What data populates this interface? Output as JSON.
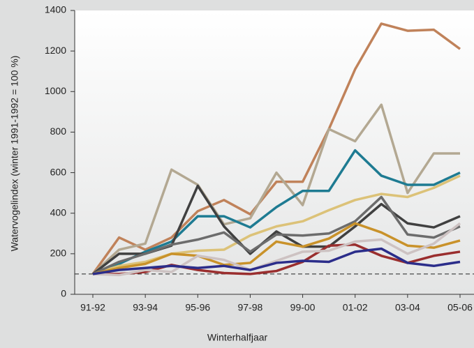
{
  "chart_data": {
    "type": "line",
    "xlabel": "Winterhalfjaar",
    "ylabel": "Watervogelindex (winter 1991-1992 = 100 %)",
    "categories": [
      "91-92",
      null,
      "93-94",
      null,
      "95-96",
      null,
      "97-98",
      null,
      "99-00",
      null,
      "01-02",
      null,
      "03-04",
      null,
      "05-06"
    ],
    "ylim": [
      0,
      1400
    ],
    "yticks": [
      0,
      200,
      400,
      600,
      800,
      1000,
      1200,
      1400
    ],
    "reference_line": 100,
    "series": [
      {
        "color": "#c0825a",
        "values": [
          100,
          280,
          220,
          280,
          410,
          465,
          395,
          555,
          555,
          815,
          1110,
          1335,
          1300,
          1305,
          1210
        ]
      },
      {
        "color": "#b3a892",
        "values": [
          100,
          220,
          250,
          615,
          540,
          345,
          375,
          600,
          440,
          815,
          755,
          935,
          500,
          695,
          695
        ]
      },
      {
        "color": "#1e7b92",
        "values": [
          100,
          150,
          210,
          260,
          385,
          385,
          330,
          430,
          510,
          510,
          710,
          585,
          540,
          540,
          600
        ]
      },
      {
        "color": "#dcc278",
        "values": [
          100,
          140,
          160,
          200,
          215,
          220,
          290,
          335,
          360,
          415,
          465,
          495,
          480,
          525,
          585
        ]
      },
      {
        "color": "#404040",
        "values": [
          100,
          200,
          200,
          240,
          535,
          335,
          200,
          310,
          235,
          235,
          335,
          445,
          350,
          330,
          385
        ]
      },
      {
        "color": "#6c6c6c",
        "values": [
          100,
          160,
          200,
          245,
          270,
          305,
          210,
          295,
          290,
          300,
          360,
          480,
          295,
          280,
          335
        ]
      },
      {
        "color": "#c9922a",
        "values": [
          100,
          130,
          150,
          200,
          190,
          145,
          155,
          260,
          235,
          275,
          350,
          305,
          240,
          230,
          265
        ]
      },
      {
        "color": "#9a2e2e",
        "values": [
          100,
          100,
          110,
          145,
          120,
          105,
          100,
          115,
          160,
          240,
          245,
          190,
          155,
          190,
          210
        ]
      },
      {
        "color": "#cdc2c2",
        "values": [
          100,
          95,
          120,
          110,
          190,
          170,
          120,
          165,
          210,
          215,
          260,
          270,
          200,
          250,
          350
        ]
      },
      {
        "color": "#2b2d8a",
        "values": [
          100,
          120,
          130,
          140,
          130,
          140,
          120,
          155,
          165,
          160,
          210,
          225,
          155,
          140,
          160
        ]
      }
    ]
  }
}
